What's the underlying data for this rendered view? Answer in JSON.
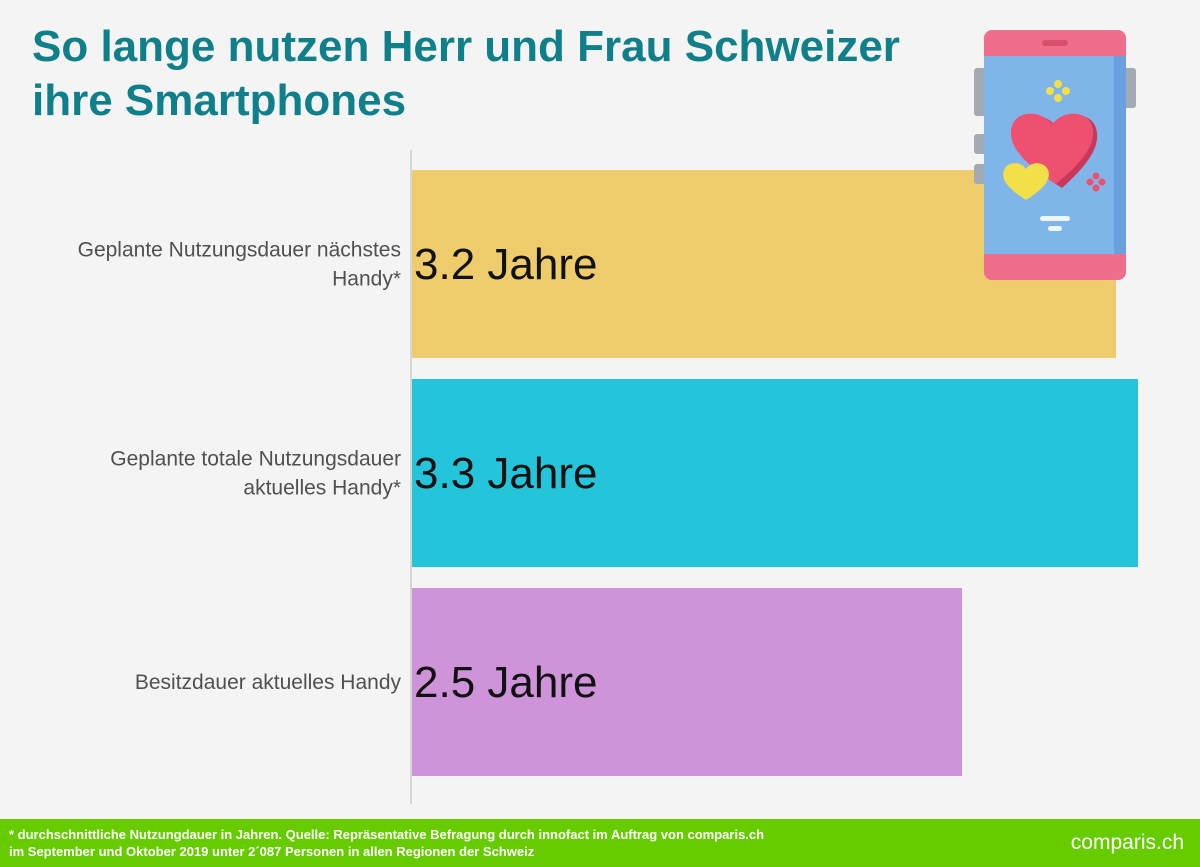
{
  "title": {
    "line1": "So lange nutzen Herr und Frau Schweizer",
    "line2": "ihre Smartphones"
  },
  "colors": {
    "title": "#0f7f8a",
    "footer": "#66cc00"
  },
  "chart_data": {
    "type": "bar",
    "orientation": "horizontal",
    "categories": [
      [
        "Geplante Nutzungsdauer nächstes",
        "Handy*"
      ],
      [
        "Geplante totale Nutzungsdauer",
        "aktuelles Handy*"
      ],
      [
        "Besitzdauer aktuelles Handy"
      ]
    ],
    "values": [
      3.2,
      3.3,
      2.5
    ],
    "value_labels": [
      "3.2 Jahre",
      "3.3 Jahre",
      "2.5 Jahre"
    ],
    "bar_colors": [
      "#eecb6b",
      "#24c5da",
      "#cf93d9"
    ],
    "xlim": [
      0,
      3.3
    ],
    "grid": false,
    "legend": "none"
  },
  "illustration": {
    "icon": "smartphone-hearts-icon"
  },
  "footer": {
    "note_line1": "* durchschnittliche Nutzungdauer in Jahren. Quelle: Repräsentative Befragung durch innofact im Auftrag von comparis.ch",
    "note_line2": "im September und Oktober 2019 unter 2´087 Personen in allen Regionen der Schweiz",
    "logo": "comparis.ch"
  }
}
